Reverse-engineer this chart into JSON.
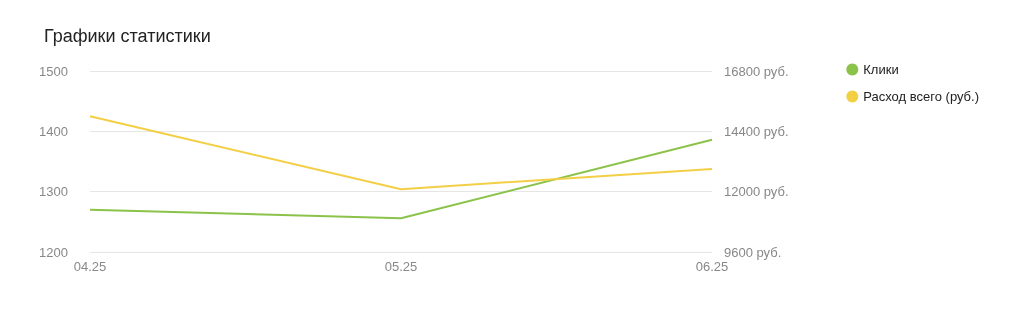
{
  "chart_data": {
    "type": "line",
    "title": "Графики статистики",
    "categories": [
      "04.25",
      "05.25",
      "06.25"
    ],
    "series": [
      {
        "name": "Клики",
        "color": "#8bc34a",
        "values": [
          1270,
          1256,
          1386
        ]
      },
      {
        "name": "Расход всего (руб.)",
        "color": "#f2cf45",
        "values": [
          15000,
          12100,
          12900
        ],
        "axis": "y2"
      }
    ],
    "ylim": [
      1200,
      1500
    ],
    "yticks": [
      1200,
      1300,
      1400,
      1500
    ],
    "y2lim": [
      9600,
      16800
    ],
    "y2ticks": [
      {
        "value": 9600,
        "label": "9600 руб."
      },
      {
        "value": 12000,
        "label": "12000 руб."
      },
      {
        "value": 14400,
        "label": "14400 руб."
      },
      {
        "value": 16800,
        "label": "16800 руб."
      }
    ],
    "grid": "y",
    "legend": "right",
    "marker": "none",
    "line_style": "solid"
  }
}
